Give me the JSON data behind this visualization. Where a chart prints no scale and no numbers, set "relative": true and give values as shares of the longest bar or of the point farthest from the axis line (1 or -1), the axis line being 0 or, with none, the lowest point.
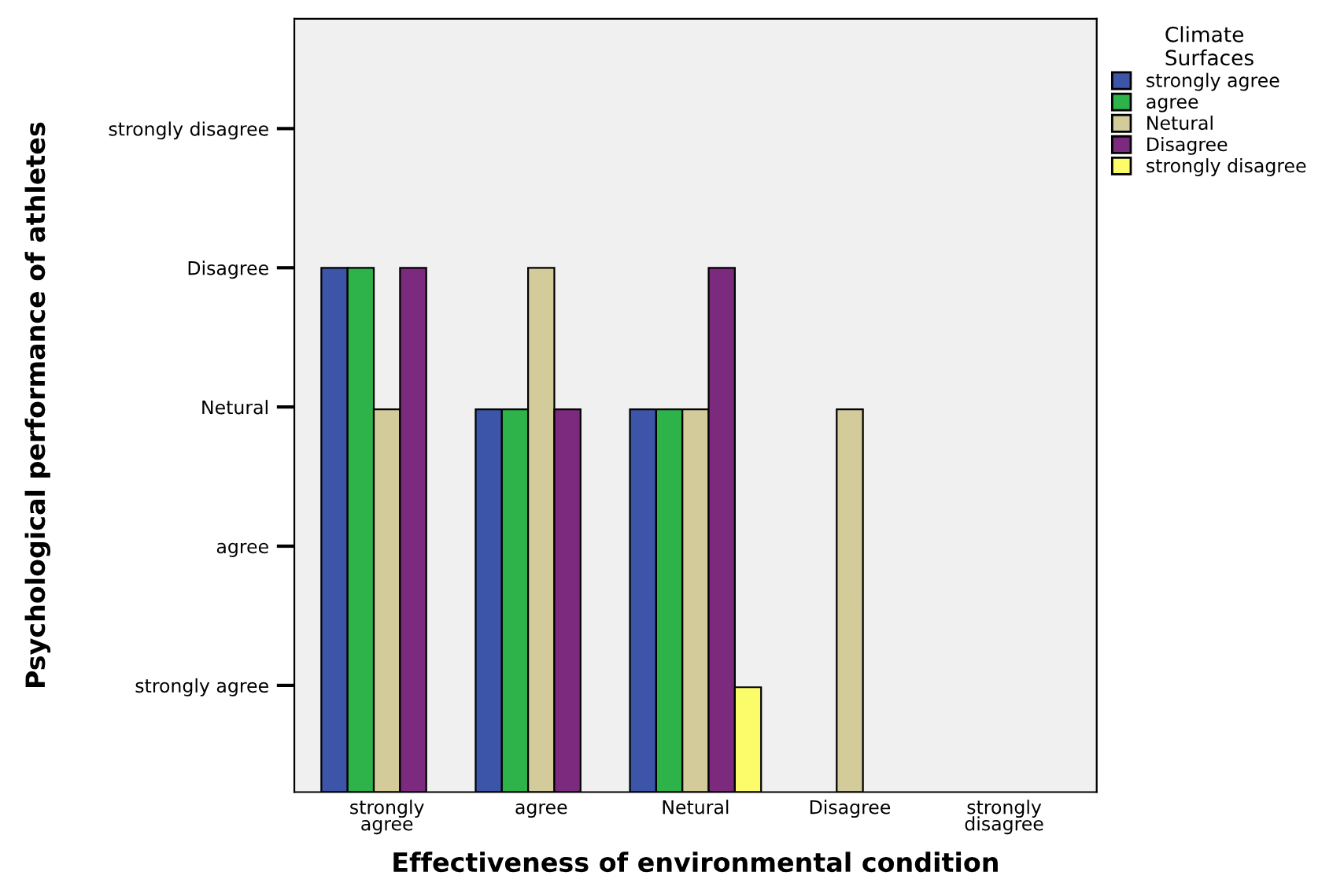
{
  "chart_data": {
    "type": "bar",
    "relative": true,
    "xlabel": "Effectiveness of environmental condition",
    "legend_title": "Climate\nSurfaces",
    "categories": [
      "strongly\nagree",
      "agree",
      "Netural",
      "Disagree",
      "strongly\ndisagree"
    ],
    "series": [
      {
        "name": "strongly agree",
        "color": "#3d55a8",
        "values": [
          1,
          0.73,
          0.73,
          null,
          null
        ]
      },
      {
        "name": "agree",
        "color": "#2db34a",
        "values": [
          1,
          0.73,
          0.73,
          null,
          null
        ]
      },
      {
        "name": "Netural",
        "color": "#d3cc9a",
        "values": [
          0.73,
          1,
          0.73,
          0.73,
          null
        ]
      },
      {
        "name": "Disagree",
        "color": "#7b2a7e",
        "values": [
          1,
          0.73,
          1,
          null,
          null
        ]
      },
      {
        "name": "strongly disagree",
        "color": "#fcfb6a",
        "values": [
          null,
          null,
          0.2,
          null,
          null
        ]
      }
    ],
    "annotations": [
      "Psychological performance of athletes",
      "strongly agree",
      "agree",
      "Netural",
      "Disagree",
      "strongly disagree"
    ],
    "grid": false,
    "legend": "top right"
  }
}
